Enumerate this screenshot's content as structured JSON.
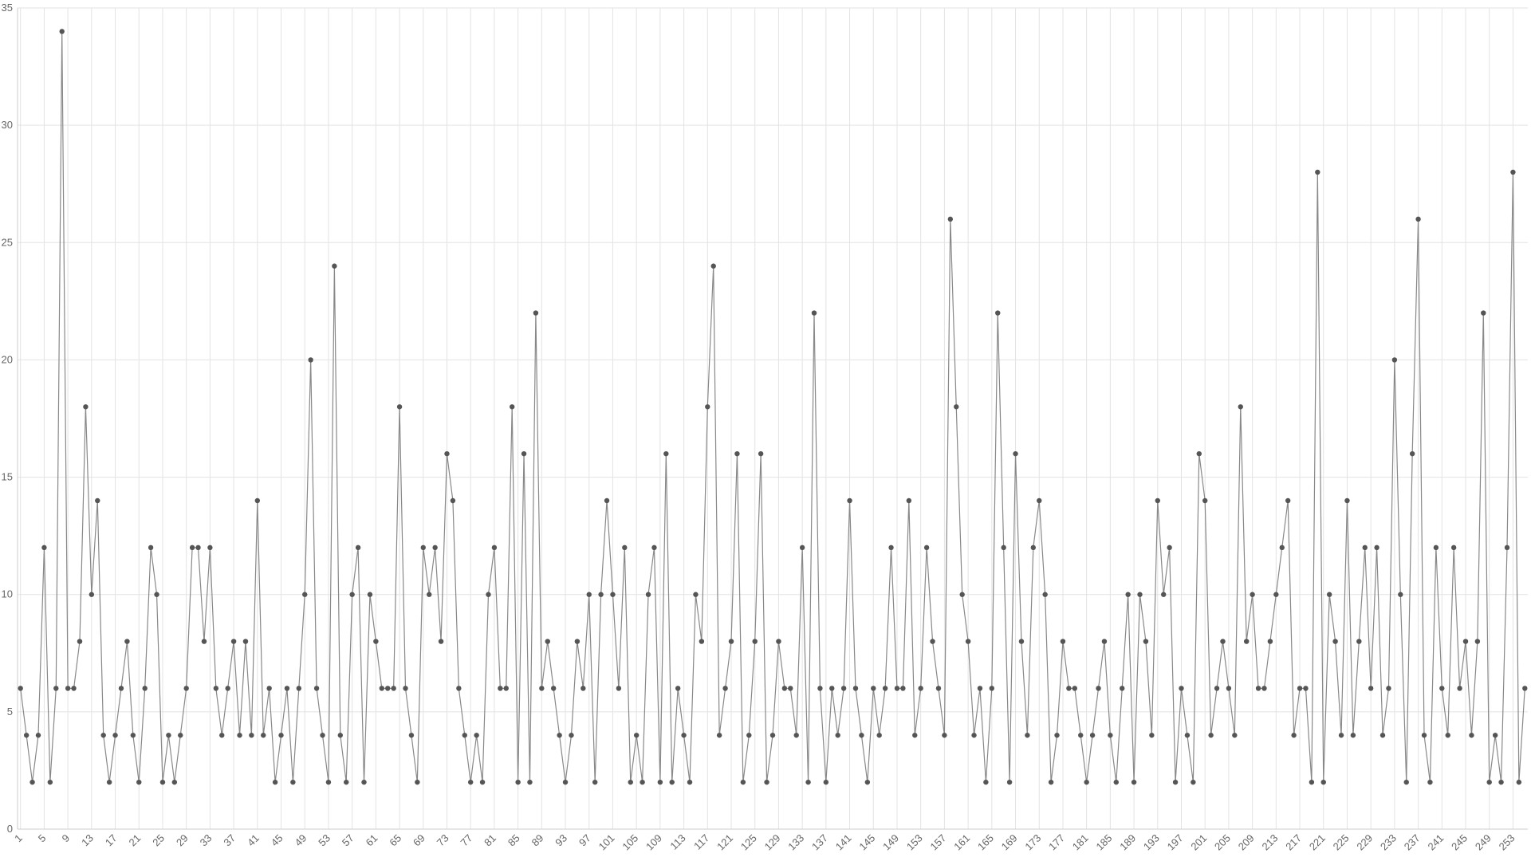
{
  "chart_data": {
    "type": "line",
    "categories": [
      "1",
      null,
      null,
      null,
      "5",
      null,
      null,
      null,
      "9",
      null,
      null,
      null,
      "13",
      null,
      null,
      null,
      "17",
      null,
      null,
      null,
      "21",
      null,
      null,
      null,
      "25",
      null,
      null,
      null,
      "29",
      null,
      null,
      null,
      "33",
      null,
      null,
      null,
      "37",
      null,
      null,
      null,
      "41",
      null,
      null,
      null,
      "45",
      null,
      null,
      null,
      "49",
      null,
      null,
      null,
      "53",
      null,
      null,
      null,
      "57",
      null,
      null,
      null,
      "61",
      null,
      null,
      null,
      "65",
      null,
      null,
      null,
      "69",
      null,
      null,
      null,
      "73",
      null,
      null,
      null,
      "77",
      null,
      null,
      null,
      "81",
      null,
      null,
      null,
      "85",
      null,
      null,
      null,
      "89",
      null,
      null,
      null,
      "93",
      null,
      null,
      null,
      "97",
      null,
      null,
      null,
      "101",
      null,
      null,
      null,
      "105",
      null,
      null,
      null,
      "109",
      null,
      null,
      null,
      "113",
      null,
      null,
      null,
      "117",
      null,
      null,
      null,
      "121",
      null,
      null,
      null,
      "125",
      null,
      null,
      null,
      "129",
      null,
      null,
      null,
      "133",
      null,
      null,
      null,
      "137",
      null,
      null,
      null,
      "141",
      null,
      null,
      null,
      "145",
      null,
      null,
      null,
      "149",
      null,
      null,
      null,
      "153",
      null,
      null,
      null,
      "157",
      null,
      null,
      null,
      "161",
      null,
      null,
      null,
      "165",
      null,
      null,
      null,
      "169",
      null,
      null,
      null,
      "173",
      null,
      null,
      null,
      "177",
      null,
      null,
      null,
      "181",
      null,
      null,
      null,
      "185",
      null,
      null,
      null,
      "189",
      null,
      null,
      null,
      "193",
      null,
      null,
      null,
      "197",
      null,
      null,
      null,
      "201",
      null,
      null,
      null,
      "205",
      null,
      null,
      null,
      "209",
      null,
      null,
      null,
      "213",
      null,
      null,
      null,
      "217",
      null,
      null,
      null,
      "221",
      null,
      null,
      null,
      "225",
      null,
      null,
      null,
      "229",
      null,
      null,
      null,
      "233",
      null,
      null,
      null,
      "237",
      null,
      null,
      null,
      "241",
      null,
      null,
      null,
      "245",
      null,
      null,
      null,
      "249",
      null,
      null,
      null,
      "253",
      null,
      null
    ],
    "values": [
      6,
      4,
      2,
      4,
      12,
      2,
      6,
      34,
      6,
      6,
      8,
      18,
      10,
      14,
      4,
      2,
      4,
      6,
      8,
      4,
      2,
      6,
      12,
      10,
      2,
      4,
      2,
      4,
      6,
      12,
      12,
      8,
      12,
      6,
      4,
      6,
      8,
      4,
      8,
      4,
      14,
      4,
      6,
      2,
      4,
      6,
      2,
      6,
      10,
      20,
      6,
      4,
      2,
      24,
      4,
      2,
      10,
      12,
      2,
      10,
      8,
      6,
      6,
      6,
      18,
      6,
      4,
      2,
      12,
      10,
      12,
      8,
      16,
      14,
      6,
      4,
      2,
      4,
      2,
      10,
      12,
      6,
      6,
      18,
      2,
      16,
      2,
      22,
      6,
      8,
      6,
      4,
      2,
      4,
      8,
      6,
      10,
      2,
      10,
      14,
      10,
      6,
      12,
      2,
      4,
      2,
      10,
      12,
      2,
      16,
      2,
      6,
      4,
      2,
      10,
      8,
      18,
      24,
      4,
      6,
      8,
      16,
      2,
      4,
      8,
      16,
      2,
      4,
      8,
      6,
      6,
      4,
      12,
      2,
      22,
      6,
      2,
      6,
      4,
      6,
      14,
      6,
      4,
      2,
      6,
      4,
      6,
      12,
      6,
      6,
      14,
      4,
      6,
      12,
      8,
      6,
      4,
      26,
      18,
      10,
      8,
      4,
      6,
      2,
      6,
      22,
      12,
      2,
      16,
      8,
      4,
      12,
      14,
      10,
      2,
      4,
      8,
      6,
      6,
      4,
      2,
      4,
      6,
      8,
      4,
      2,
      6,
      10,
      2,
      10,
      8,
      4,
      14,
      10,
      12,
      2,
      6,
      4,
      2,
      16,
      14,
      4,
      6,
      8,
      6,
      4,
      18,
      8,
      10,
      6,
      6,
      8,
      10,
      12,
      14,
      4,
      6,
      6,
      2,
      28,
      2,
      10,
      8,
      4,
      14,
      4,
      8,
      12,
      6,
      12,
      4,
      6,
      20,
      10,
      2,
      16,
      26,
      4,
      2,
      12,
      6,
      4,
      12,
      6,
      8,
      4,
      8,
      22,
      2,
      4,
      2,
      12,
      28,
      2,
      6
    ],
    "color": "#888888",
    "marker_color": "#555555",
    "ylim": [
      0,
      35
    ],
    "yticks": [
      0,
      5,
      10,
      15,
      20,
      25,
      30,
      35
    ],
    "grid": true
  }
}
